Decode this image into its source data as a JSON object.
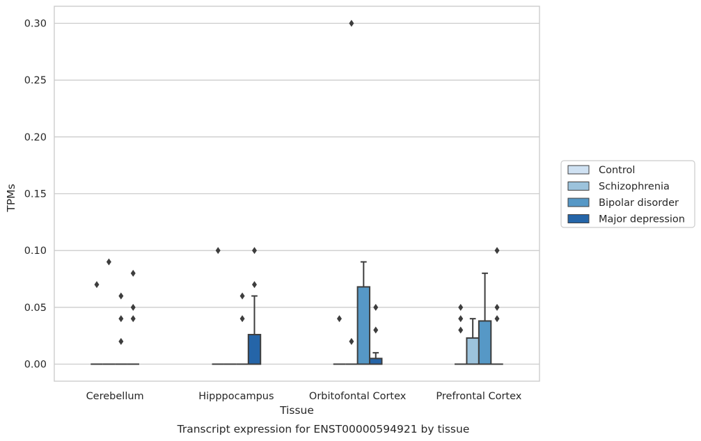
{
  "chart_data": {
    "type": "box",
    "title": "Transcript expression for ENST00000594921 by tissue",
    "xlabel": "Tissue",
    "ylabel": "TPMs",
    "ylim": [
      -0.015,
      0.315
    ],
    "yticks": [
      "0.00",
      "0.05",
      "0.10",
      "0.15",
      "0.20",
      "0.25",
      "0.30"
    ],
    "grid": true,
    "legend_position": "right",
    "categories": [
      "Cerebellum",
      "Hipppocampus",
      "Orbitofontal Cortex",
      "Prefrontal Cortex"
    ],
    "series": [
      {
        "name": "Control",
        "color": "#cfe1f2",
        "boxes": [
          {
            "q1": 0,
            "median": 0,
            "q3": 0,
            "whisker_high": 0,
            "outliers": [
              0.07
            ]
          },
          {
            "q1": 0,
            "median": 0,
            "q3": 0,
            "whisker_high": 0,
            "outliers": [
              0.1
            ]
          },
          {
            "q1": 0,
            "median": 0,
            "q3": 0,
            "whisker_high": 0,
            "outliers": [
              0.04
            ]
          },
          {
            "q1": 0,
            "median": 0,
            "q3": 0,
            "whisker_high": 0,
            "outliers": [
              0.03,
              0.04,
              0.05
            ]
          }
        ]
      },
      {
        "name": "Schizophrenia",
        "color": "#9cc3dc",
        "boxes": [
          {
            "q1": 0,
            "median": 0,
            "q3": 0,
            "whisker_high": 0,
            "outliers": [
              0.09
            ]
          },
          {
            "q1": 0,
            "median": 0,
            "q3": 0,
            "whisker_high": 0,
            "outliers": []
          },
          {
            "q1": 0,
            "median": 0,
            "q3": 0,
            "whisker_high": 0,
            "outliers": [
              0.02,
              0.3
            ]
          },
          {
            "q1": 0,
            "median": 0,
            "q3": 0.023,
            "whisker_high": 0.04,
            "outliers": []
          }
        ]
      },
      {
        "name": "Bipolar disorder",
        "color": "#5698c6",
        "boxes": [
          {
            "q1": 0,
            "median": 0,
            "q3": 0,
            "whisker_high": 0,
            "outliers": [
              0.02,
              0.04,
              0.06
            ]
          },
          {
            "q1": 0,
            "median": 0,
            "q3": 0,
            "whisker_high": 0,
            "outliers": [
              0.04,
              0.06
            ]
          },
          {
            "q1": 0,
            "median": 0,
            "q3": 0.068,
            "whisker_high": 0.09,
            "outliers": []
          },
          {
            "q1": 0,
            "median": 0,
            "q3": 0.038,
            "whisker_high": 0.08,
            "outliers": []
          }
        ]
      },
      {
        "name": "Major depression",
        "color": "#2565a8",
        "boxes": [
          {
            "q1": 0,
            "median": 0,
            "q3": 0,
            "whisker_high": 0,
            "outliers": [
              0.04,
              0.05,
              0.08
            ]
          },
          {
            "q1": 0,
            "median": 0,
            "q3": 0.026,
            "whisker_high": 0.06,
            "outliers": [
              0.07,
              0.1
            ]
          },
          {
            "q1": 0,
            "median": 0,
            "q3": 0.005,
            "whisker_high": 0.01,
            "outliers": [
              0.03,
              0.05
            ]
          },
          {
            "q1": 0,
            "median": 0,
            "q3": 0,
            "whisker_high": 0,
            "outliers": [
              0.04,
              0.05,
              0.1
            ]
          }
        ]
      }
    ]
  }
}
